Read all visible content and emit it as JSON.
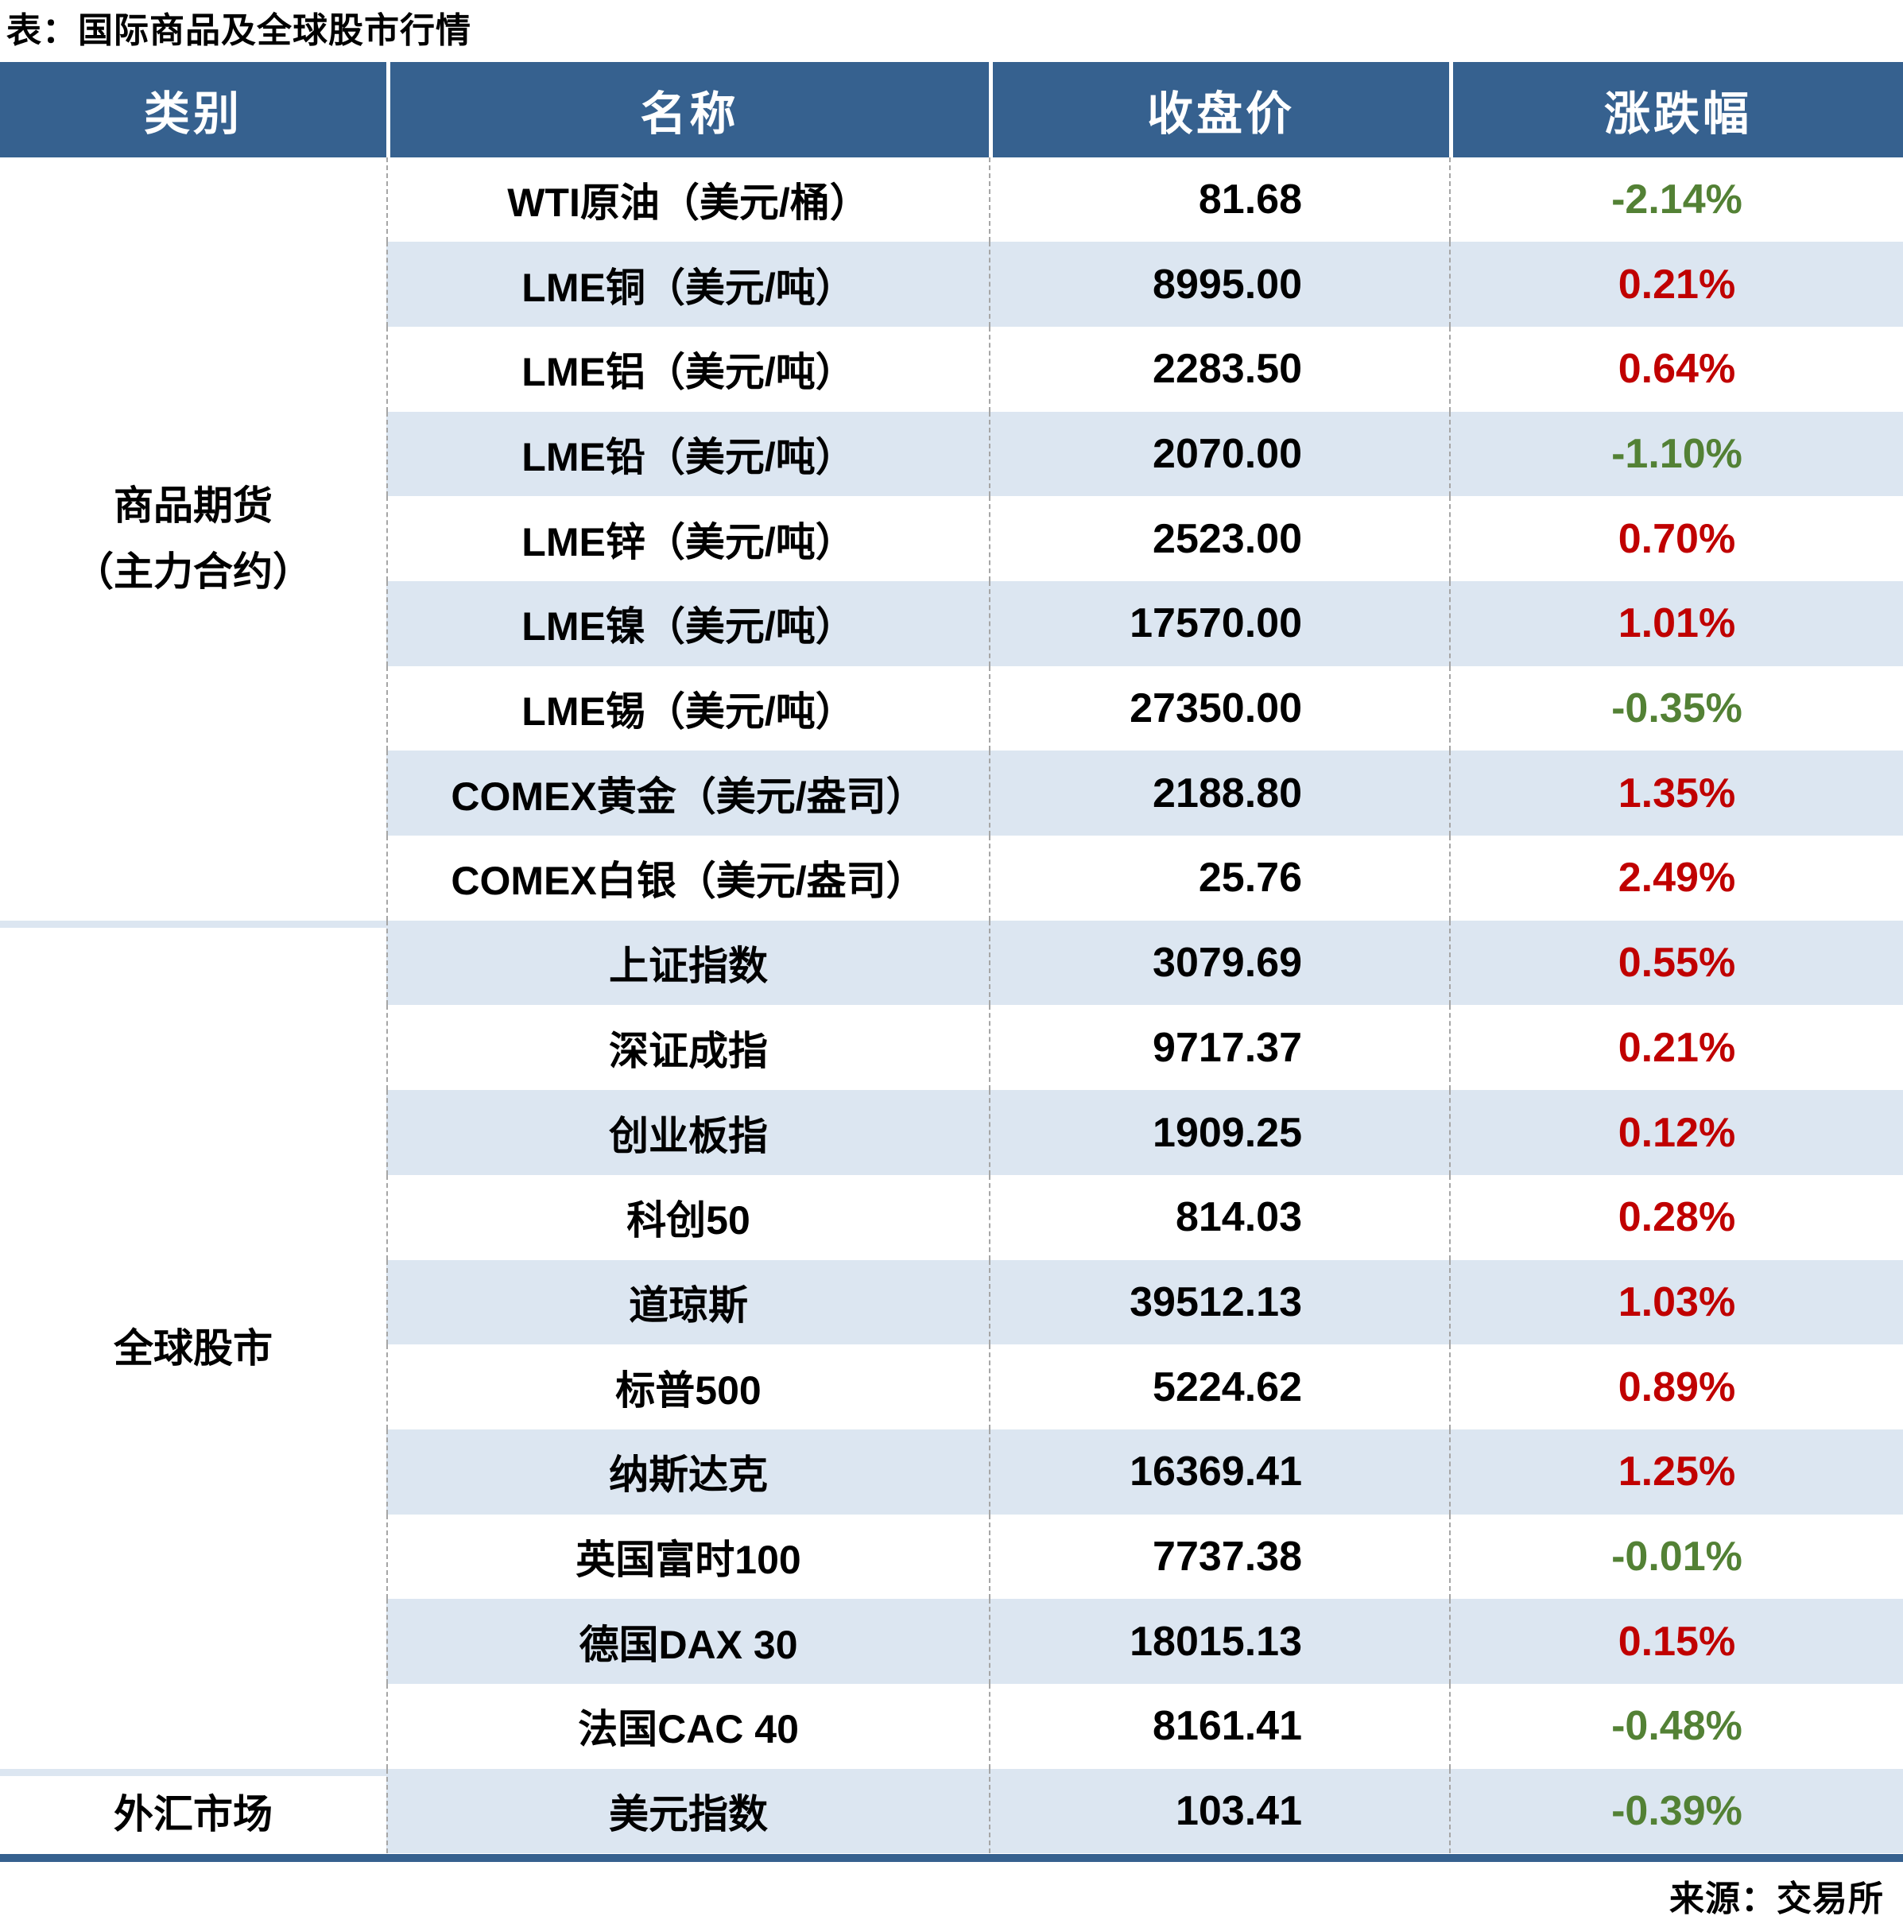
{
  "colors": {
    "header_bg": "#36618F",
    "row_bg": "#FFFFFF",
    "row_alt_bg": "#DCE6F1",
    "up": "#C00000",
    "down": "#538135",
    "text": "#000000",
    "divider": "#A6A6A6",
    "bottom_border": "#36618F"
  },
  "chart_data": {
    "type": "table",
    "title": "表：国际商品及全球股市行情",
    "source_note": "来源：交易所",
    "columns": [
      "类别",
      "名称",
      "收盘价",
      "涨跌幅"
    ],
    "sections": [
      {
        "category": "商品期货\n（主力合约）",
        "rows": [
          [
            "WTI原油（美元/桶）",
            "81.68",
            "-2.14%"
          ],
          [
            "LME铜（美元/吨）",
            "8995.00",
            "0.21%"
          ],
          [
            "LME铝（美元/吨）",
            "2283.50",
            "0.64%"
          ],
          [
            "LME铅（美元/吨）",
            "2070.00",
            "-1.10%"
          ],
          [
            "LME锌（美元/吨）",
            "2523.00",
            "0.70%"
          ],
          [
            "LME镍（美元/吨）",
            "17570.00",
            "1.01%"
          ],
          [
            "LME锡（美元/吨）",
            "27350.00",
            "-0.35%"
          ],
          [
            "COMEX黄金（美元/盎司）",
            "2188.80",
            "1.35%"
          ],
          [
            "COMEX白银（美元/盎司）",
            "25.76",
            "2.49%"
          ]
        ]
      },
      {
        "category": "全球股市",
        "rows": [
          [
            "上证指数",
            "3079.69",
            "0.55%"
          ],
          [
            "深证成指",
            "9717.37",
            "0.21%"
          ],
          [
            "创业板指",
            "1909.25",
            "0.12%"
          ],
          [
            "科创50",
            "814.03",
            "0.28%"
          ],
          [
            "道琼斯",
            "39512.13",
            "1.03%"
          ],
          [
            "标普500",
            "5224.62",
            "0.89%"
          ],
          [
            "纳斯达克",
            "16369.41",
            "1.25%"
          ],
          [
            "英国富时100",
            "7737.38",
            "-0.01%"
          ],
          [
            "德国DAX 30",
            "18015.13",
            "0.15%"
          ],
          [
            "法国CAC 40",
            "8161.41",
            "-0.48%"
          ]
        ]
      },
      {
        "category": "外汇市场",
        "rows": [
          [
            "美元指数",
            "103.41",
            "-0.39%"
          ]
        ]
      }
    ]
  }
}
